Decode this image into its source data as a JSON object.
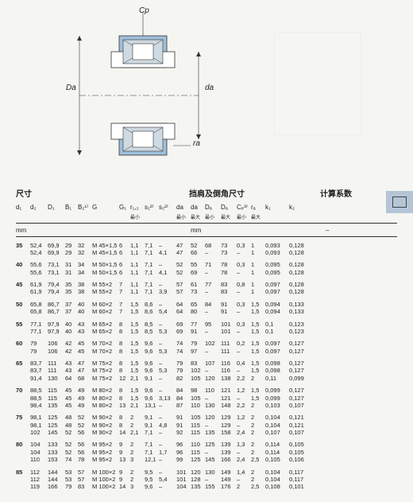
{
  "labels": {
    "cp": "Cp",
    "Da": "Da",
    "da": "da",
    "ra": "ra"
  },
  "headers": {
    "dim": "尺寸",
    "shoulder": "挡肩及倒角尺寸",
    "calc": "计算系数"
  },
  "cols": {
    "d1": "d₁",
    "d2": "d₂",
    "D1": "D₁",
    "B1": "B₁",
    "B2": "B₂¹⁾",
    "G": "G",
    "G1": "G₁",
    "r12": "r₁,₂",
    "s1": "s₁²⁾",
    "s2": "s₂²⁾",
    "da_min": "da",
    "da_max": "da",
    "Da_min": "Dₐ",
    "Da_max": "Dₐ",
    "Cp": "Cₚ³⁾",
    "ra": "rₐ",
    "k1": "k₁",
    "k2": "k₂",
    "min": "最小",
    "max": "最大"
  },
  "unit_mm": "mm",
  "unit_dash": "–",
  "rows": [
    [
      [
        "35",
        "52,4",
        "69,9",
        "29",
        "32",
        "M 45×1,5",
        "6",
        "1,1",
        "7,1",
        "–",
        "47",
        "52",
        "68",
        "73",
        "0,3",
        "1",
        "0,093",
        "0,128"
      ],
      [
        "",
        "52,4",
        "69,9",
        "29",
        "32",
        "M 45×1,5",
        "6",
        "1,1",
        "7,1",
        "4,1",
        "47",
        "66",
        "–",
        "73",
        "–",
        "1",
        "0,093",
        "0,128"
      ]
    ],
    [
      [
        "40",
        "55,6",
        "73,1",
        "31",
        "34",
        "M 50×1,5",
        "6",
        "1,1",
        "7,1",
        "–",
        "52",
        "55",
        "71",
        "78",
        "0,3",
        "1",
        "0,095",
        "0,128"
      ],
      [
        "",
        "55,6",
        "73,1",
        "31",
        "34",
        "M 50×1,5",
        "6",
        "1,1",
        "7,1",
        "4,1",
        "52",
        "69",
        "–",
        "78",
        "–",
        "1",
        "0,095",
        "0,128"
      ]
    ],
    [
      [
        "45",
        "61,9",
        "79,4",
        "35",
        "38",
        "M 55×2",
        "7",
        "1,1",
        "7,1",
        "–",
        "57",
        "61",
        "77",
        "83",
        "0,8",
        "1",
        "0,097",
        "0,128"
      ],
      [
        "",
        "61,9",
        "79,4",
        "35",
        "38",
        "M 55×2",
        "7",
        "1,1",
        "7,1",
        "3,9",
        "57",
        "73",
        "–",
        "83",
        "–",
        "1",
        "0,097",
        "0,128"
      ]
    ],
    [
      [
        "50",
        "65,8",
        "86,7",
        "37",
        "40",
        "M 60×2",
        "7",
        "1,5",
        "8,6",
        "–",
        "64",
        "65",
        "84",
        "91",
        "0,3",
        "1,5",
        "0,094",
        "0,133"
      ],
      [
        "",
        "65,8",
        "86,7",
        "37",
        "40",
        "M 60×2",
        "7",
        "1,5",
        "8,6",
        "5,4",
        "64",
        "80",
        "–",
        "91",
        "–",
        "1,5",
        "0,094",
        "0,133"
      ]
    ],
    [
      [
        "55",
        "77,1",
        "97,9",
        "40",
        "43",
        "M 65×2",
        "8",
        "1,5",
        "8,5",
        "–",
        "69",
        "77",
        "95",
        "101",
        "0,3",
        "1,5",
        "0,1",
        "0,123"
      ],
      [
        "",
        "77,1",
        "97,9",
        "40",
        "43",
        "M 65×2",
        "8",
        "1,5",
        "8,5",
        "5,3",
        "69",
        "91",
        "–",
        "101",
        "–",
        "1,5",
        "0,1",
        "0,123"
      ]
    ],
    [
      [
        "60",
        "79",
        "106",
        "42",
        "45",
        "M 70×2",
        "8",
        "1,5",
        "9,6",
        "–",
        "74",
        "79",
        "102",
        "111",
        "0,2",
        "1,5",
        "0,097",
        "0,127"
      ],
      [
        "",
        "79",
        "106",
        "42",
        "45",
        "M 70×2",
        "8",
        "1,5",
        "9,6",
        "5,3",
        "74",
        "97",
        "–",
        "111",
        "–",
        "1,5",
        "0,097",
        "0,127"
      ]
    ],
    [
      [
        "65",
        "83,7",
        "111",
        "43",
        "47",
        "M 75×2",
        "8",
        "1,5",
        "9,6",
        "–",
        "79",
        "83",
        "107",
        "116",
        "0,4",
        "1,5",
        "0,098",
        "0,127"
      ],
      [
        "",
        "83,7",
        "111",
        "43",
        "47",
        "M 75×2",
        "8",
        "1,5",
        "9,6",
        "5,3",
        "79",
        "102",
        "–",
        "116",
        "–",
        "1,5",
        "0,098",
        "0,127"
      ],
      [
        "",
        "91,4",
        "130",
        "64",
        "68",
        "M 75×2",
        "12",
        "2,1",
        "9,1",
        "–",
        "82",
        "105",
        "120",
        "138",
        "2,2",
        "2",
        "0,11",
        "0,099"
      ]
    ],
    [
      [
        "70",
        "88,5",
        "115",
        "45",
        "49",
        "M 80×2",
        "8",
        "1,5",
        "9,6",
        "–",
        "84",
        "98",
        "110",
        "121",
        "1,2",
        "1,5",
        "0,099",
        "0,127"
      ],
      [
        "",
        "88,5",
        "115",
        "45",
        "49",
        "M 80×2",
        "8",
        "1,5",
        "9,6",
        "3,13",
        "84",
        "105",
        "–",
        "121",
        "–",
        "1,5",
        "0,099",
        "0,127"
      ],
      [
        "",
        "98,4",
        "135",
        "45",
        "49",
        "M 80×2",
        "13",
        "2,1",
        "13,1",
        "–",
        "87",
        "110",
        "130",
        "148",
        "2,2",
        "2",
        "0,103",
        "0,107"
      ]
    ],
    [
      [
        "75",
        "98,1",
        "125",
        "48",
        "52",
        "M 90×2",
        "8",
        "2",
        "9,1",
        "–",
        "91",
        "105",
        "120",
        "129",
        "1,2",
        "2",
        "0,104",
        "0,121"
      ],
      [
        "",
        "98,1",
        "125",
        "48",
        "52",
        "M 90×2",
        "8",
        "2",
        "9,1",
        "4,8",
        "91",
        "115",
        "–",
        "129",
        "–",
        "2",
        "0,104",
        "0,121"
      ],
      [
        "",
        "102",
        "145",
        "52",
        "56",
        "M 90×2",
        "14",
        "2,1",
        "7,1",
        "–",
        "92",
        "115",
        "135",
        "158",
        "2,4",
        "2",
        "0,107",
        "0,107"
      ]
    ],
    [
      [
        "80",
        "104",
        "133",
        "52",
        "56",
        "M 95×2",
        "9",
        "2",
        "7,1",
        "–",
        "96",
        "110",
        "125",
        "139",
        "1,3",
        "2",
        "0,114",
        "0,105"
      ],
      [
        "",
        "104",
        "133",
        "52",
        "56",
        "M 95×2",
        "9",
        "2",
        "7,1",
        "1,7",
        "96",
        "115",
        "–",
        "139",
        "–",
        "2",
        "0,114",
        "0,105"
      ],
      [
        "",
        "110",
        "153",
        "74",
        "78",
        "M 95×2",
        "13",
        "3",
        "12,1",
        "–",
        "99",
        "125",
        "145",
        "166",
        "2,4",
        "2,5",
        "0,105",
        "0,106"
      ]
    ],
    [
      [
        "85",
        "112",
        "144",
        "53",
        "57",
        "M 100×2",
        "9",
        "2",
        "9,5",
        "–",
        "101",
        "120",
        "130",
        "149",
        "1,4",
        "2",
        "0,104",
        "0,117"
      ],
      [
        "",
        "112",
        "144",
        "53",
        "57",
        "M 100×2",
        "9",
        "2",
        "9,5",
        "5,4",
        "101",
        "128",
        "–",
        "149",
        "–",
        "2",
        "0,104",
        "0,117"
      ],
      [
        "",
        "119",
        "166",
        "79",
        "83",
        "M 100×2",
        "14",
        "3",
        "9,6",
        "–",
        "104",
        "135",
        "155",
        "176",
        "2",
        "2,5",
        "0,108",
        "0,101"
      ]
    ]
  ],
  "diagram": {
    "outer": "#9fbfd8",
    "cross": "#cfd9e2",
    "stroke": "#333"
  }
}
